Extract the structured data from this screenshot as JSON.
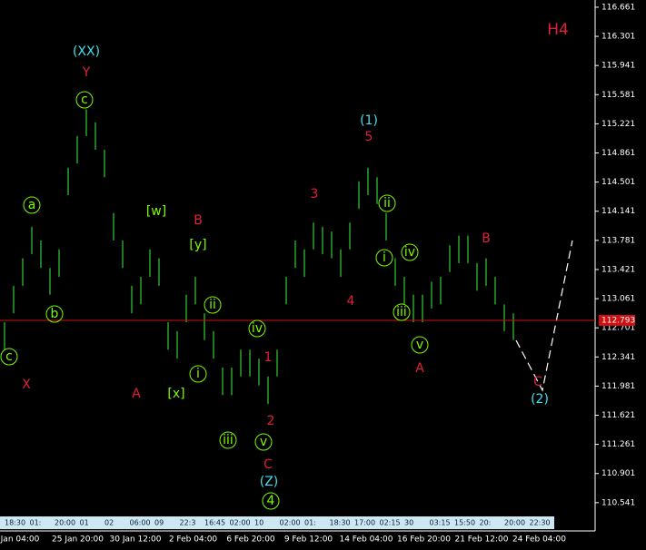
{
  "chart_data": {
    "type": "range_bar",
    "timeframe": "H4",
    "color": "#32cd32",
    "highs": [
      112.77,
      113.22,
      113.56,
      113.95,
      113.78,
      113.44,
      113.67,
      114.68,
      115.07,
      115.4,
      115.24,
      114.9,
      114.12,
      113.78,
      113.22,
      113.33,
      113.67,
      113.56,
      112.77,
      112.66,
      113.11,
      113.33,
      112.88,
      112.66,
      112.21,
      112.21,
      112.43,
      112.43,
      112.32,
      112.1,
      112.43,
      113.33,
      113.78,
      113.67,
      114.0,
      113.95,
      113.89,
      113.67,
      114.0,
      114.51,
      114.68,
      114.56,
      114.12,
      113.56,
      113.33,
      113.11,
      113.11,
      113.27,
      113.33,
      113.72,
      113.84,
      113.84,
      113.5,
      113.56,
      113.33,
      112.99,
      112.88
    ],
    "lows": [
      112.43,
      112.88,
      113.22,
      113.61,
      113.44,
      113.11,
      113.33,
      114.34,
      114.73,
      115.07,
      114.9,
      114.56,
      113.78,
      113.44,
      112.88,
      112.99,
      113.33,
      113.22,
      112.43,
      112.32,
      112.77,
      112.99,
      112.55,
      112.32,
      111.87,
      111.87,
      112.1,
      112.1,
      111.99,
      111.76,
      112.1,
      112.99,
      113.44,
      113.33,
      113.67,
      113.61,
      113.56,
      113.33,
      113.67,
      114.17,
      114.34,
      114.23,
      113.78,
      113.22,
      112.99,
      112.77,
      112.77,
      112.94,
      112.99,
      113.39,
      113.5,
      113.5,
      113.16,
      113.22,
      112.99,
      112.66,
      112.55
    ],
    "ylim": [
      110.304,
      116.75
    ],
    "yticks": [
      116.661,
      116.301,
      115.941,
      115.581,
      115.221,
      114.861,
      114.501,
      114.141,
      113.781,
      113.421,
      113.061,
      112.701,
      112.341,
      111.981,
      111.621,
      111.261,
      110.901,
      110.541
    ],
    "current_price": 112.793,
    "x_labels": [
      "Jan 04:00",
      "25 Jan 20:00",
      "30 Jan 12:00",
      "2 Feb 04:00",
      "6 Feb 20:00",
      "9 Feb 12:00",
      "14 Feb 04:00",
      "16 Feb 20:00",
      "21 Feb 12:00",
      "24 Feb 04:00"
    ],
    "strip_labels": [
      "18:30",
      "01:",
      "20:00",
      "01",
      "02",
      "06:00",
      "09",
      "22:3",
      "16:45",
      "02:00",
      "10",
      "02:00",
      "01:",
      "18:30",
      "17:00",
      "02:15",
      "30",
      "03:15",
      "15:50",
      "20:",
      "20:00",
      "22:30"
    ],
    "wave_labels": [
      "(XX)",
      "Y",
      "c",
      "a",
      "b",
      "c",
      "X",
      "A",
      "[w]",
      "B",
      "[y]",
      "ii",
      "i",
      "[x]",
      "iii",
      "iv",
      "1",
      "2",
      "v",
      "C",
      "(Z)",
      "4",
      "3",
      "4",
      "(1)",
      "5",
      "ii",
      "i",
      "iv",
      "iii",
      "v",
      "A",
      "B",
      "C",
      "(2)"
    ]
  }
}
